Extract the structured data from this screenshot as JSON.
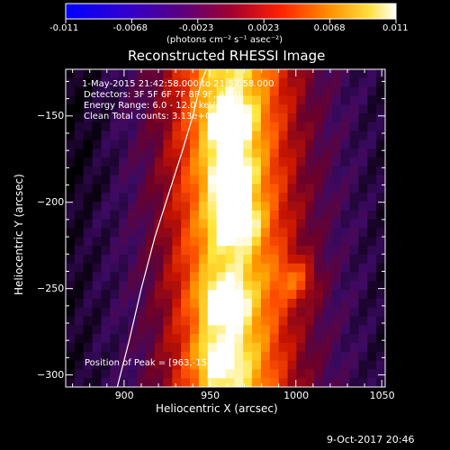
{
  "chart_data": {
    "type": "heatmap",
    "title": "Reconstructed RHESSI Image",
    "xlabel": "Heliocentric X (arcsec)",
    "ylabel": "Heliocentric Y (arcsec)",
    "xlim": [
      866,
      1052
    ],
    "ylim": [
      -307,
      -123
    ],
    "xticks": [
      900,
      950,
      1000,
      1050
    ],
    "yticks": [
      -150,
      -200,
      -250,
      -300
    ],
    "colorbar": {
      "ticks": [
        "-0.011",
        "-0.0068",
        "-0.0023",
        "0.0023",
        "0.0068",
        "0.011"
      ],
      "units": "(photons cm⁻² s⁻¹ asec⁻²)",
      "range": [
        -0.011,
        0.011
      ]
    },
    "info_lines": [
      " 1-May-2015 21:42:58.000 to 21:52:58.000",
      "Detectors: 3F 5F 6F 7F 8F 9F, Att 0",
      "Energy Range: 6.0 - 12.0 keV",
      "Clean     Total counts: 3.13e+05"
    ],
    "peak_label": "Position of Peak = [963,-154]",
    "peak_position": [
      963,
      -154
    ],
    "limb_curve_x": [
      896,
      903,
      910,
      918,
      926,
      934,
      940,
      945,
      948
    ],
    "limb_curve_y": [
      -307,
      -280,
      -250,
      -220,
      -195,
      -170,
      -150,
      -130,
      -123
    ],
    "sources": [
      {
        "x": 962,
        "y": -154,
        "amp": 1.0
      },
      {
        "x": 962,
        "y": -183,
        "amp": 0.85
      },
      {
        "x": 965,
        "y": -210,
        "amp": 0.95
      },
      {
        "x": 958,
        "y": -258,
        "amp": 0.85
      },
      {
        "x": 1000,
        "y": -245,
        "amp": 0.55
      },
      {
        "x": 955,
        "y": -290,
        "amp": 0.6
      }
    ]
  },
  "footer": {
    "date": "9-Oct-2017 20:46"
  }
}
